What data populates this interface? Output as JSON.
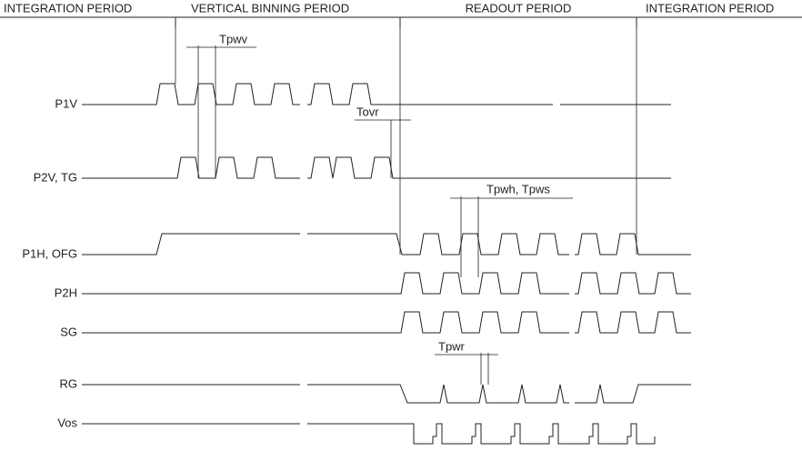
{
  "periods": [
    "INTEGRATION PERIOD",
    "VERTICAL BINNING PERIOD",
    "READOUT PERIOD",
    "INTEGRATION PERIOD"
  ],
  "signals": [
    "P1V",
    "P2V, TG",
    "P1H, OFG",
    "P2H",
    "SG",
    "RG",
    "Vos"
  ],
  "timings": [
    "Tpwv",
    "Tovr",
    "Tpwh, Tpws",
    "Tpwr"
  ]
}
